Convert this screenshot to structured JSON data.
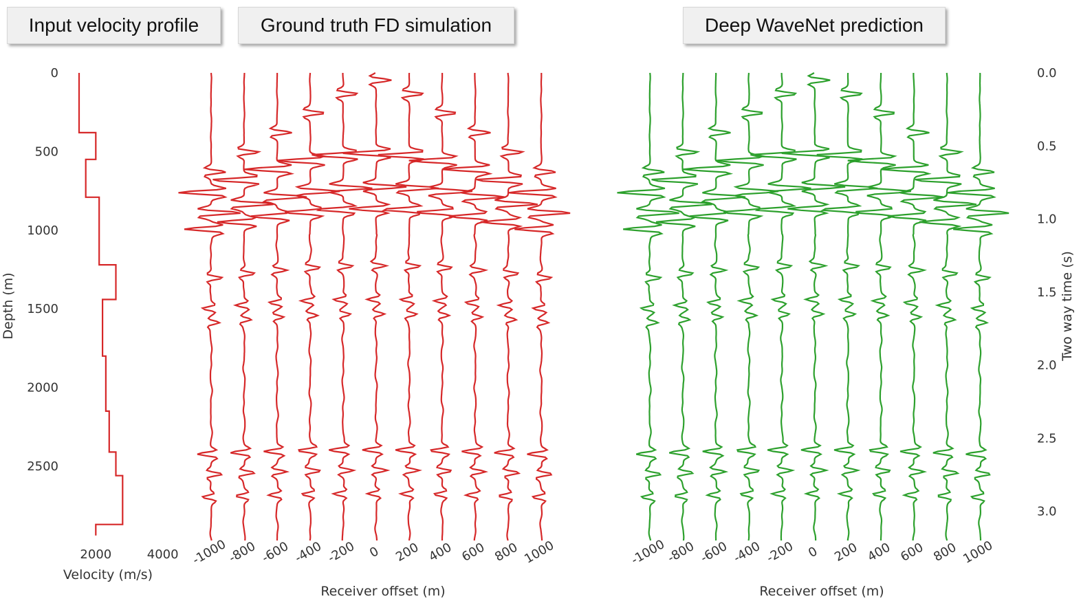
{
  "panel_titles": {
    "velocity": "Input velocity profile",
    "ground_truth": "Ground truth FD simulation",
    "prediction": "Deep WaveNet prediction"
  },
  "colors": {
    "ground_truth": "#d62728",
    "prediction": "#2ca02c"
  },
  "chart_data": [
    {
      "type": "line",
      "name": "velocity-profile",
      "xlabel": "Velocity (m/s)",
      "ylabel": "Depth (m)",
      "xticks": [
        2000,
        4000
      ],
      "yticks": [
        0,
        500,
        1000,
        1500,
        2000,
        2500
      ],
      "xlim": [
        1000,
        5000
      ],
      "ylim": [
        2940,
        0
      ],
      "x": [
        1500,
        1500,
        2000,
        2000,
        1700,
        1700,
        2100,
        2100,
        2600,
        2600,
        2200,
        2200,
        2300,
        2300,
        2400,
        2400,
        2600,
        2600,
        2800,
        2800,
        2000,
        2000
      ],
      "y": [
        0,
        380,
        380,
        550,
        550,
        790,
        790,
        1220,
        1220,
        1440,
        1440,
        1800,
        1800,
        2150,
        2150,
        2410,
        2410,
        2560,
        2560,
        2870,
        2870,
        2940
      ]
    },
    {
      "type": "line",
      "name": "ground-truth",
      "xlabel": "Receiver offset (m)",
      "xticks": [
        -1000,
        -800,
        -600,
        -400,
        -200,
        0,
        200,
        400,
        600,
        800,
        1000
      ],
      "ylim": [
        3.2,
        0
      ]
    },
    {
      "type": "line",
      "name": "prediction",
      "xlabel": "Receiver offset (m)",
      "xticks": [
        -1000,
        -800,
        -600,
        -400,
        -200,
        0,
        200,
        400,
        600,
        800,
        1000
      ],
      "y2label": "Two way time (s)",
      "y2ticks": [
        "0.0",
        "0.5",
        "1.0",
        "1.5",
        "2.0",
        "2.5",
        "3.0"
      ],
      "ylim": [
        3.2,
        0
      ]
    }
  ]
}
